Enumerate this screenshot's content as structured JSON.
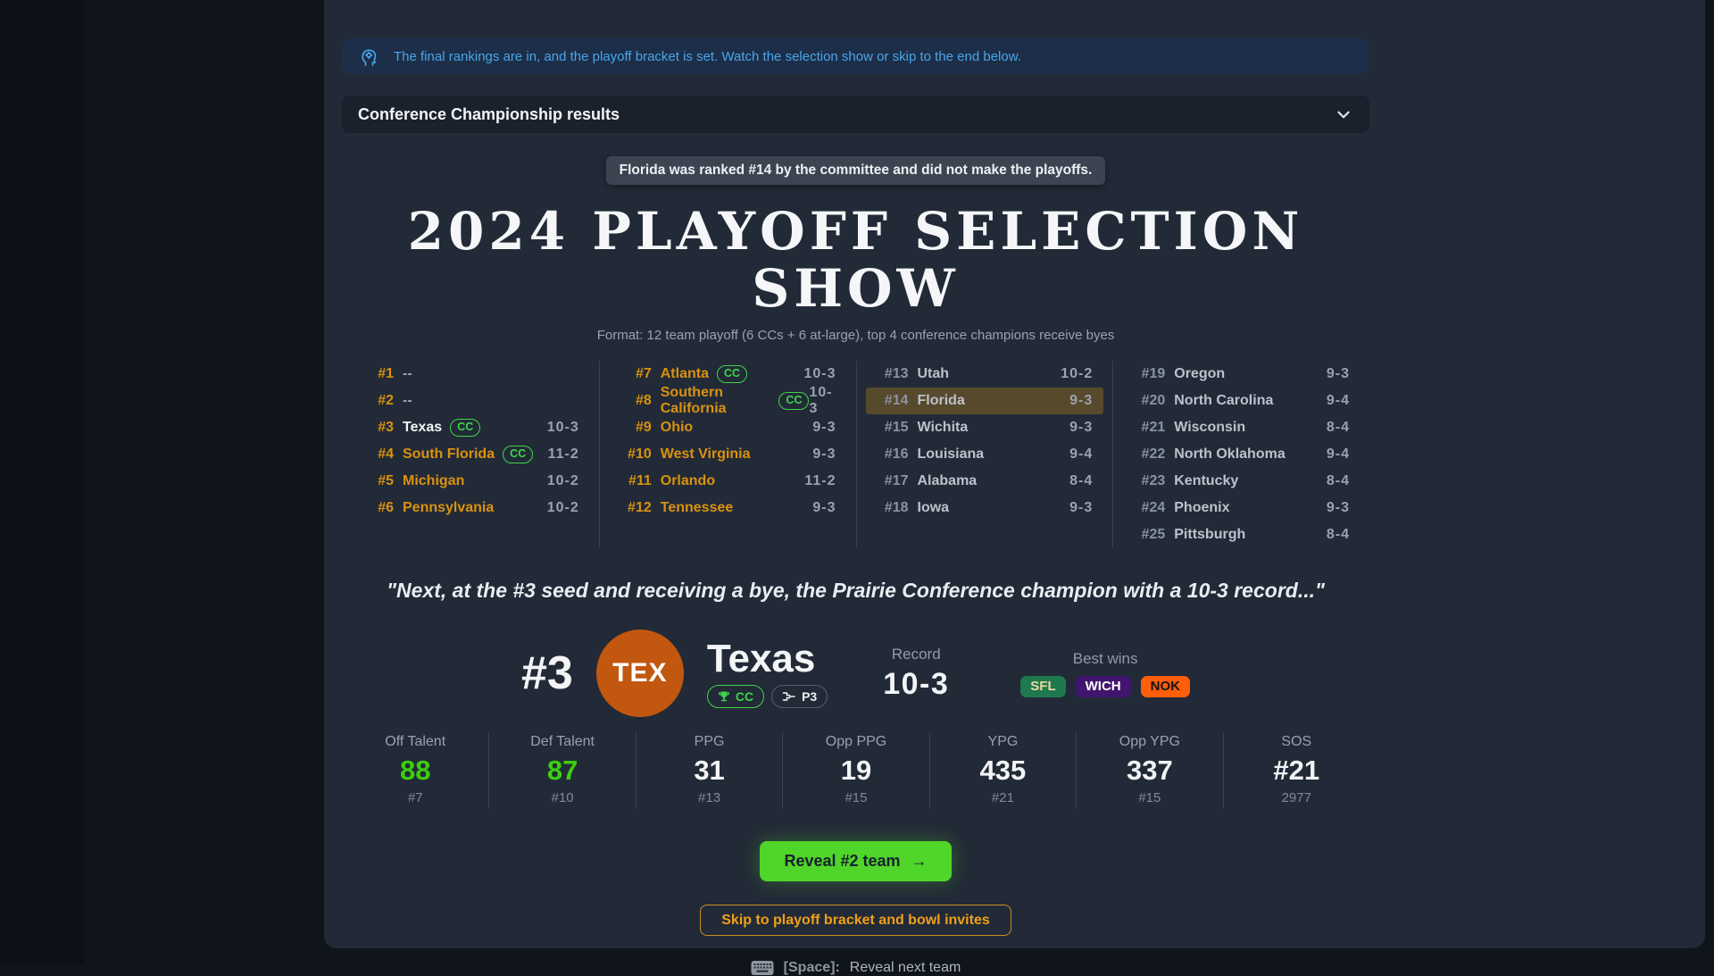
{
  "banner": {
    "text": "The final rankings are in, and the playoff bracket is set. Watch the selection show or skip to the end below.",
    "icon": "announcer-head-gear-icon",
    "accent": "#49a5e9"
  },
  "conference_panel": {
    "title": "Conference Championship results"
  },
  "tooltip": {
    "text": "Florida was ranked #14 by the committee and did not make the playoffs."
  },
  "show": {
    "title": "2024 PLAYOFF SELECTION SHOW",
    "format_line": "Format: 12 team playoff (6 CCs + 6 at-large), top 4 conference champions receive byes"
  },
  "rankings": {
    "cc_badge_label": "CC",
    "columns": [
      {
        "rows": [
          {
            "rank": "#1",
            "team": "--",
            "record": "",
            "cc": false,
            "rank_tone": "orange",
            "team_tone": "dash",
            "highlight": false
          },
          {
            "rank": "#2",
            "team": "--",
            "record": "",
            "cc": false,
            "rank_tone": "orange",
            "team_tone": "dash",
            "highlight": false
          },
          {
            "rank": "#3",
            "team": "Texas",
            "record": "10-3",
            "cc": true,
            "rank_tone": "orange",
            "team_tone": "white",
            "highlight": false
          },
          {
            "rank": "#4",
            "team": "South Florida",
            "record": "11-2",
            "cc": true,
            "rank_tone": "orange",
            "team_tone": "orange",
            "highlight": false
          },
          {
            "rank": "#5",
            "team": "Michigan",
            "record": "10-2",
            "cc": false,
            "rank_tone": "orange",
            "team_tone": "orange",
            "highlight": false
          },
          {
            "rank": "#6",
            "team": "Pennsylvania",
            "record": "10-2",
            "cc": false,
            "rank_tone": "orange",
            "team_tone": "orange",
            "highlight": false
          }
        ]
      },
      {
        "rows": [
          {
            "rank": "#7",
            "team": "Atlanta",
            "record": "10-3",
            "cc": true,
            "rank_tone": "orange",
            "team_tone": "orange",
            "highlight": false
          },
          {
            "rank": "#8",
            "team": "Southern California",
            "record": "10-3",
            "cc": true,
            "rank_tone": "orange",
            "team_tone": "orange",
            "highlight": false
          },
          {
            "rank": "#9",
            "team": "Ohio",
            "record": "9-3",
            "cc": false,
            "rank_tone": "orange",
            "team_tone": "orange",
            "highlight": false
          },
          {
            "rank": "#10",
            "team": "West Virginia",
            "record": "9-3",
            "cc": false,
            "rank_tone": "orange",
            "team_tone": "orange",
            "highlight": false
          },
          {
            "rank": "#11",
            "team": "Orlando",
            "record": "11-2",
            "cc": false,
            "rank_tone": "orange",
            "team_tone": "orange",
            "highlight": false
          },
          {
            "rank": "#12",
            "team": "Tennessee",
            "record": "9-3",
            "cc": false,
            "rank_tone": "orange",
            "team_tone": "orange",
            "highlight": false
          }
        ]
      },
      {
        "rows": [
          {
            "rank": "#13",
            "team": "Utah",
            "record": "10-2",
            "cc": false,
            "rank_tone": "gray",
            "team_tone": "gray",
            "highlight": false
          },
          {
            "rank": "#14",
            "team": "Florida",
            "record": "9-3",
            "cc": false,
            "rank_tone": "gray",
            "team_tone": "gray",
            "highlight": true
          },
          {
            "rank": "#15",
            "team": "Wichita",
            "record": "9-3",
            "cc": false,
            "rank_tone": "gray",
            "team_tone": "gray",
            "highlight": false
          },
          {
            "rank": "#16",
            "team": "Louisiana",
            "record": "9-4",
            "cc": false,
            "rank_tone": "gray",
            "team_tone": "gray",
            "highlight": false
          },
          {
            "rank": "#17",
            "team": "Alabama",
            "record": "8-4",
            "cc": false,
            "rank_tone": "gray",
            "team_tone": "gray",
            "highlight": false
          },
          {
            "rank": "#18",
            "team": "Iowa",
            "record": "9-3",
            "cc": false,
            "rank_tone": "gray",
            "team_tone": "gray",
            "highlight": false
          }
        ]
      },
      {
        "rows": [
          {
            "rank": "#19",
            "team": "Oregon",
            "record": "9-3",
            "cc": false,
            "rank_tone": "gray",
            "team_tone": "gray",
            "highlight": false
          },
          {
            "rank": "#20",
            "team": "North Carolina",
            "record": "9-4",
            "cc": false,
            "rank_tone": "gray",
            "team_tone": "gray",
            "highlight": false
          },
          {
            "rank": "#21",
            "team": "Wisconsin",
            "record": "8-4",
            "cc": false,
            "rank_tone": "gray",
            "team_tone": "gray",
            "highlight": false
          },
          {
            "rank": "#22",
            "team": "North Oklahoma",
            "record": "9-4",
            "cc": false,
            "rank_tone": "gray",
            "team_tone": "gray",
            "highlight": false
          },
          {
            "rank": "#23",
            "team": "Kentucky",
            "record": "8-4",
            "cc": false,
            "rank_tone": "gray",
            "team_tone": "gray",
            "highlight": false
          },
          {
            "rank": "#24",
            "team": "Phoenix",
            "record": "9-3",
            "cc": false,
            "rank_tone": "gray",
            "team_tone": "gray",
            "highlight": false
          },
          {
            "rank": "#25",
            "team": "Pittsburgh",
            "record": "8-4",
            "cc": false,
            "rank_tone": "gray",
            "team_tone": "gray",
            "highlight": false
          }
        ]
      }
    ]
  },
  "quote": "\"Next, at the #3 seed and receiving a bye, the Prairie Conference champion with a 10-3 record...\"",
  "reveal": {
    "seed": "#3",
    "abbr": "TEX",
    "team": "Texas",
    "logo_color": "#c2570f",
    "cc_badge": "CC",
    "seed_badge": "P3",
    "record_label": "Record",
    "record": "10-3",
    "best_wins_label": "Best wins",
    "best_wins": [
      {
        "label": "SFL",
        "bg": "#1e7a4e",
        "fg": "#ead9a2"
      },
      {
        "label": "WICH",
        "bg": "#41156e",
        "fg": "#ffffff"
      },
      {
        "label": "NOK",
        "bg": "#fc5e0a",
        "fg": "#141414"
      }
    ]
  },
  "stats": [
    {
      "label": "Off Talent",
      "value": "88",
      "sub": "#7",
      "green": true
    },
    {
      "label": "Def Talent",
      "value": "87",
      "sub": "#10",
      "green": true
    },
    {
      "label": "PPG",
      "value": "31",
      "sub": "#13",
      "green": false
    },
    {
      "label": "Opp PPG",
      "value": "19",
      "sub": "#15",
      "green": false
    },
    {
      "label": "YPG",
      "value": "435",
      "sub": "#21",
      "green": false
    },
    {
      "label": "Opp YPG",
      "value": "337",
      "sub": "#15",
      "green": false
    },
    {
      "label": "SOS",
      "value": "#21",
      "sub": "2977",
      "green": false
    }
  ],
  "actions": {
    "reveal_button": "Reveal #2 team",
    "reveal_arrow": "→",
    "skip_button": "Skip to playoff bracket and bowl invites"
  },
  "hint": {
    "key": "[Space]:",
    "text": "Reveal next team"
  },
  "colors": {
    "accent_green": "#50d52a",
    "accent_orange": "#d9920f",
    "highlight_row": "#57492c"
  }
}
